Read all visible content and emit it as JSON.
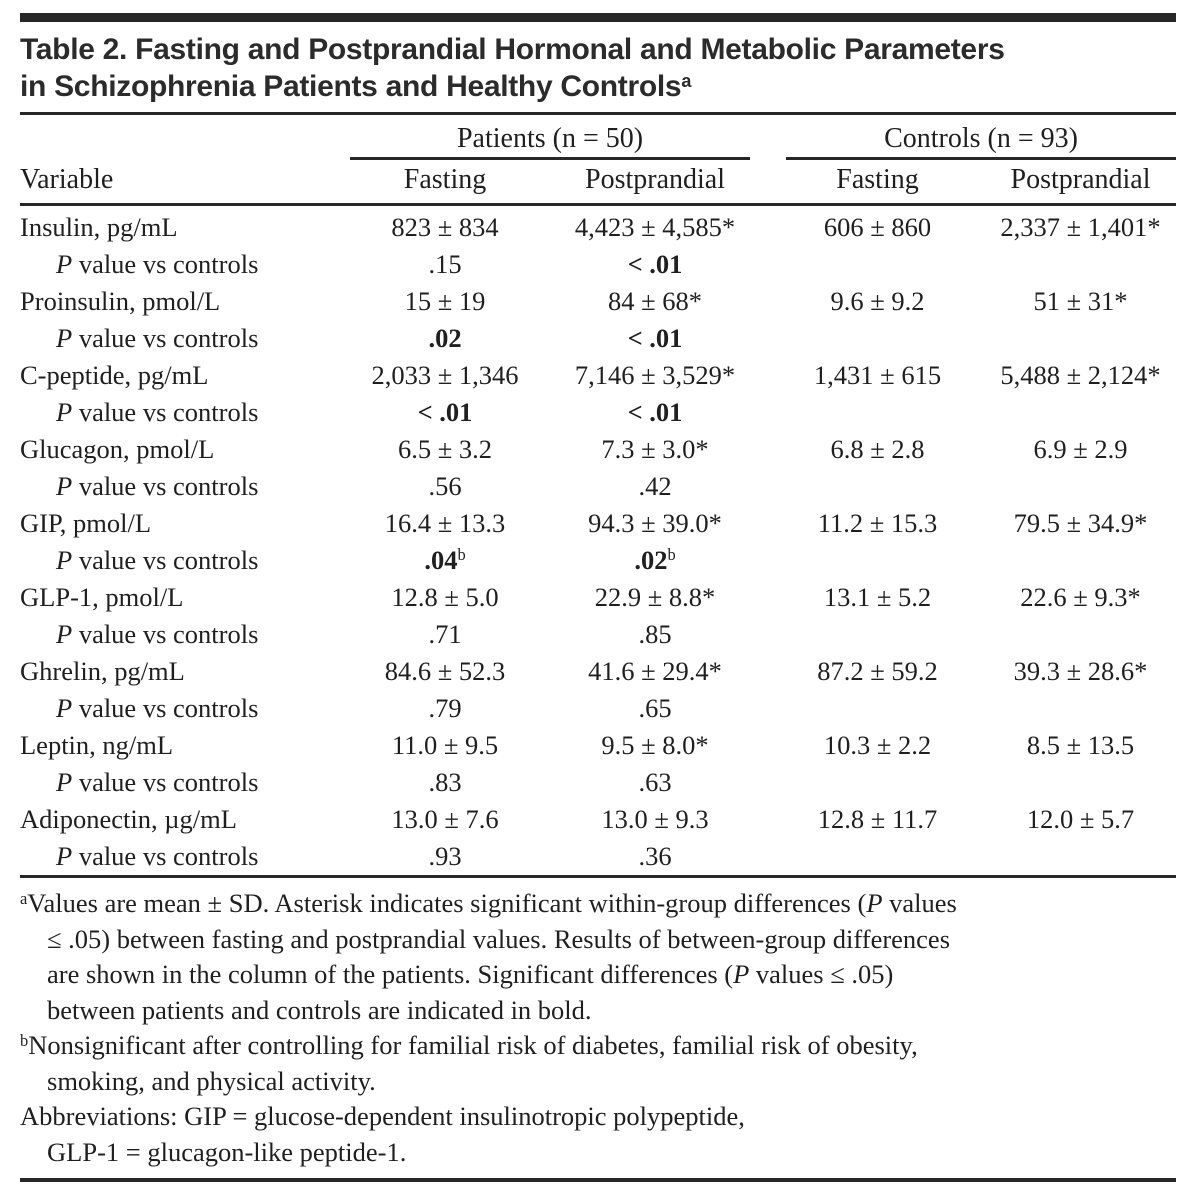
{
  "title": {
    "line1": "Table 2. Fasting and Postprandial Hormonal and Metabolic Parameters",
    "line2": "in Schizophrenia Patients and Healthy Controls",
    "superscript": "a"
  },
  "colors": {
    "text": "#1f1f1f",
    "rule": "#272727",
    "background": "#ffffff"
  },
  "table": {
    "group_headers": [
      {
        "label": "Patients (n = 50)"
      },
      {
        "label": "Controls (n = 93)"
      }
    ],
    "columns": [
      "Variable",
      "Fasting",
      "Postprandial",
      "Fasting",
      "Postprandial"
    ],
    "rows": [
      {
        "type": "variable",
        "label": "Insulin, pg/mL",
        "values": [
          {
            "v": "823 ± 834"
          },
          {
            "v": "4,423 ± 4,585*"
          },
          {
            "v": "606 ± 860"
          },
          {
            "v": "2,337 ± 1,401*"
          }
        ]
      },
      {
        "type": "pvalue",
        "label_italic": "P",
        "label_rest": " value vs controls",
        "values": [
          {
            "v": ".15"
          },
          {
            "v": "< .01",
            "bold": true
          },
          {
            "v": ""
          },
          {
            "v": ""
          }
        ]
      },
      {
        "type": "variable",
        "label": "Proinsulin, pmol/L",
        "values": [
          {
            "v": "15 ± 19"
          },
          {
            "v": "84 ± 68*"
          },
          {
            "v": "9.6 ± 9.2"
          },
          {
            "v": "51 ± 31*"
          }
        ]
      },
      {
        "type": "pvalue",
        "label_italic": "P",
        "label_rest": " value vs controls",
        "values": [
          {
            "v": ".02",
            "bold": true
          },
          {
            "v": "< .01",
            "bold": true
          },
          {
            "v": ""
          },
          {
            "v": ""
          }
        ]
      },
      {
        "type": "variable",
        "label": "C-peptide, pg/mL",
        "values": [
          {
            "v": "2,033 ± 1,346"
          },
          {
            "v": "7,146 ± 3,529*"
          },
          {
            "v": "1,431 ± 615"
          },
          {
            "v": "5,488 ± 2,124*"
          }
        ]
      },
      {
        "type": "pvalue",
        "label_italic": "P",
        "label_rest": " value vs controls",
        "values": [
          {
            "v": "< .01",
            "bold": true
          },
          {
            "v": "< .01",
            "bold": true
          },
          {
            "v": ""
          },
          {
            "v": ""
          }
        ]
      },
      {
        "type": "variable",
        "label": "Glucagon, pmol/L",
        "values": [
          {
            "v": "6.5 ± 3.2"
          },
          {
            "v": "7.3 ± 3.0*"
          },
          {
            "v": "6.8 ± 2.8"
          },
          {
            "v": "6.9 ± 2.9"
          }
        ]
      },
      {
        "type": "pvalue",
        "label_italic": "P",
        "label_rest": " value vs controls",
        "values": [
          {
            "v": ".56"
          },
          {
            "v": ".42"
          },
          {
            "v": ""
          },
          {
            "v": ""
          }
        ]
      },
      {
        "type": "variable",
        "label": "GIP, pmol/L",
        "values": [
          {
            "v": "16.4 ± 13.3"
          },
          {
            "v": "94.3 ± 39.0*"
          },
          {
            "v": "11.2 ± 15.3"
          },
          {
            "v": "79.5 ± 34.9*"
          }
        ]
      },
      {
        "type": "pvalue",
        "label_italic": "P",
        "label_rest": " value vs controls",
        "values": [
          {
            "v": ".04",
            "bold": true,
            "sup": "b"
          },
          {
            "v": ".02",
            "bold": true,
            "sup": "b"
          },
          {
            "v": ""
          },
          {
            "v": ""
          }
        ]
      },
      {
        "type": "variable",
        "label": "GLP-1, pmol/L",
        "values": [
          {
            "v": "12.8 ± 5.0"
          },
          {
            "v": "22.9 ± 8.8*"
          },
          {
            "v": "13.1 ± 5.2"
          },
          {
            "v": "22.6 ± 9.3*"
          }
        ]
      },
      {
        "type": "pvalue",
        "label_italic": "P",
        "label_rest": " value vs controls",
        "values": [
          {
            "v": ".71"
          },
          {
            "v": ".85"
          },
          {
            "v": ""
          },
          {
            "v": ""
          }
        ]
      },
      {
        "type": "variable",
        "label": "Ghrelin, pg/mL",
        "values": [
          {
            "v": "84.6 ± 52.3"
          },
          {
            "v": "41.6 ± 29.4*"
          },
          {
            "v": "87.2 ± 59.2"
          },
          {
            "v": "39.3 ± 28.6*"
          }
        ]
      },
      {
        "type": "pvalue",
        "label_italic": "P",
        "label_rest": " value vs controls",
        "values": [
          {
            "v": ".79"
          },
          {
            "v": ".65"
          },
          {
            "v": ""
          },
          {
            "v": ""
          }
        ]
      },
      {
        "type": "variable",
        "label": "Leptin, ng/mL",
        "values": [
          {
            "v": "11.0 ± 9.5"
          },
          {
            "v": "9.5 ± 8.0*"
          },
          {
            "v": "10.3 ± 2.2"
          },
          {
            "v": "8.5 ± 13.5"
          }
        ]
      },
      {
        "type": "pvalue",
        "label_italic": "P",
        "label_rest": " value vs controls",
        "values": [
          {
            "v": ".83"
          },
          {
            "v": ".63"
          },
          {
            "v": ""
          },
          {
            "v": ""
          }
        ]
      },
      {
        "type": "variable",
        "label": "Adiponectin, µg/mL",
        "values": [
          {
            "v": "13.0 ± 7.6"
          },
          {
            "v": "13.0 ± 9.3"
          },
          {
            "v": "12.8 ± 11.7"
          },
          {
            "v": "12.0 ± 5.7"
          }
        ]
      },
      {
        "type": "pvalue",
        "label_italic": "P",
        "label_rest": " value vs controls",
        "values": [
          {
            "v": ".93"
          },
          {
            "v": ".36"
          },
          {
            "v": ""
          },
          {
            "v": ""
          }
        ]
      }
    ]
  },
  "footnotes": [
    {
      "marker": "a",
      "lines": [
        [
          {
            "t": "Values are mean ± SD. Asterisk indicates significant within-group differences ("
          },
          {
            "t": "P",
            "italic": true
          },
          {
            "t": " values"
          }
        ],
        [
          {
            "t": "≤ .05) between fasting and postprandial values. Results of between-group differences"
          }
        ],
        [
          {
            "t": "are shown in the column of the patients. Significant differences ("
          },
          {
            "t": "P",
            "italic": true
          },
          {
            "t": " values ≤ .05)"
          }
        ],
        [
          {
            "t": "between patients and controls are indicated in bold."
          }
        ]
      ]
    },
    {
      "marker": "b",
      "lines": [
        [
          {
            "t": "Nonsignificant after controlling for familial risk of diabetes, familial risk of obesity,"
          }
        ],
        [
          {
            "t": "smoking, and physical activity."
          }
        ]
      ]
    },
    {
      "marker": "",
      "lines": [
        [
          {
            "t": "Abbreviations: GIP = glucose-dependent insulinotropic polypeptide,"
          }
        ],
        [
          {
            "t": "GLP-1 = glucagon-like peptide-1."
          }
        ]
      ]
    }
  ]
}
